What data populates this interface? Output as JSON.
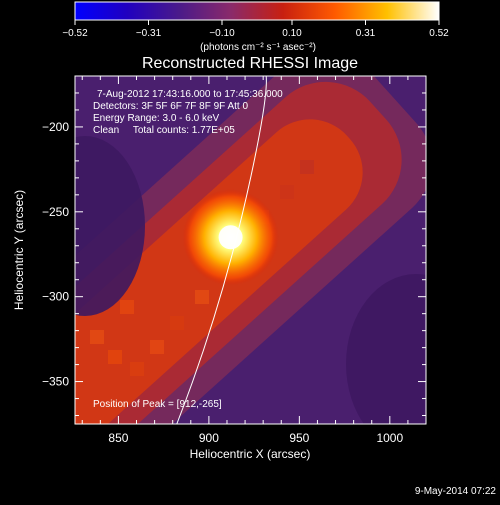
{
  "chart_data": {
    "type": "heatmap",
    "title": "Reconstructed RHESSI Image",
    "xlabel": "Heliocentric X (arcsec)",
    "ylabel": "Heliocentric Y (arcsec)",
    "x_range": [
      826,
      1020
    ],
    "y_range": [
      -375,
      -170
    ],
    "x_ticks": [
      850,
      900,
      950,
      1000
    ],
    "y_ticks": [
      -200,
      -250,
      -300,
      -350
    ],
    "x_tick_labels": [
      "850",
      "900",
      "950",
      "1000"
    ],
    "y_tick_labels": [
      "−200",
      "−250",
      "−300",
      "−350"
    ],
    "info_lines": [
      "7-Aug-2012 17:43:16.000 to 17:45:36.000",
      "Detectors: 3F 5F 6F 7F 8F 9F Att 0",
      "Energy Range: 3.0 - 6.0 keV",
      "Clean     Total counts: 1.77E+05"
    ],
    "peak_label": "Position of Peak = [912,-265]",
    "peak_position": [
      912,
      -265
    ],
    "colorbar": {
      "min": -0.52,
      "max": 0.52,
      "tick_labels": [
        "−0.52",
        "−0.31",
        "−0.10",
        "0.10",
        "0.31",
        "0.52"
      ],
      "unit_label": "(photons cm⁻² s⁻¹ asec⁻²)"
    },
    "timestamp": "9-May-2014 07:22",
    "colors": {
      "background": "#000000",
      "foreground": "#ffffff",
      "limb_line": "#ffffff",
      "colormap_stops": [
        "#0000ff",
        "#2000c0",
        "#4a1a8a",
        "#8a2a6a",
        "#c82010",
        "#ff5a00",
        "#ffc000",
        "#ffffff"
      ]
    }
  }
}
